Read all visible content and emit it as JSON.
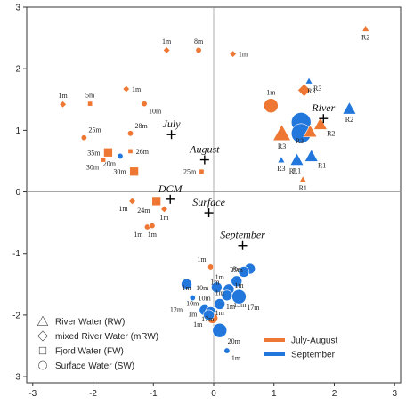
{
  "colors": {
    "july_august": "#EE7733",
    "september": "#2277DD",
    "axis": "#333333",
    "refline": "#999999"
  },
  "chart_data": {
    "type": "scatter",
    "title": "",
    "xlabel": "",
    "ylabel": "",
    "xlim": [
      -3.1,
      3.1
    ],
    "ylim": [
      -3.1,
      3.0
    ],
    "xticks": [
      "-3",
      "-2",
      "-1",
      "0",
      "1",
      "2",
      "3"
    ],
    "yticks": [
      "-3",
      "-2",
      "-1",
      "0",
      "1",
      "2",
      "3"
    ],
    "grid": false,
    "reference_lines": {
      "x": 0,
      "y": 0
    },
    "legend_shapes": [
      {
        "shape": "triangle",
        "label": "River Water (RW)"
      },
      {
        "shape": "diamond",
        "label": "mixed River Water (mRW)"
      },
      {
        "shape": "square",
        "label": "Fjord Water (FW)"
      },
      {
        "shape": "circle",
        "label": "Surface Water (SW)"
      }
    ],
    "legend_colors": [
      {
        "color": "july_august",
        "label": "July-August"
      },
      {
        "color": "september",
        "label": "September"
      }
    ],
    "legend_placement": "bottom-left and bottom-right",
    "variables": [
      {
        "label": "July",
        "x": -0.7,
        "y": 0.93
      },
      {
        "label": "August",
        "x": -0.15,
        "y": 0.52
      },
      {
        "label": "DCM",
        "x": -0.72,
        "y": -0.12
      },
      {
        "label": "Surface",
        "x": -0.08,
        "y": -0.34
      },
      {
        "label": "September",
        "x": 0.48,
        "y": -0.87
      },
      {
        "label": "River",
        "x": 1.82,
        "y": 1.19
      }
    ],
    "points": [
      {
        "shape": "triangle",
        "color": "july_august",
        "x": 2.52,
        "y": 2.65,
        "size": 1,
        "label": "R2",
        "lpos": "below"
      },
      {
        "shape": "diamond",
        "color": "july_august",
        "x": -0.78,
        "y": 2.3,
        "size": 1,
        "label": "1m",
        "lpos": "above"
      },
      {
        "shape": "circle",
        "color": "july_august",
        "x": -0.25,
        "y": 2.3,
        "size": 1,
        "label": "8m",
        "lpos": "above"
      },
      {
        "shape": "diamond",
        "color": "july_august",
        "x": 0.32,
        "y": 2.24,
        "size": 1,
        "label": "1m",
        "lpos": "right"
      },
      {
        "shape": "diamond",
        "color": "july_august",
        "x": -1.45,
        "y": 1.67,
        "size": 1,
        "label": "1m",
        "lpos": "right"
      },
      {
        "shape": "diamond",
        "color": "july_august",
        "x": -2.5,
        "y": 1.42,
        "size": 1,
        "label": "1m",
        "lpos": "above"
      },
      {
        "shape": "square",
        "color": "july_august",
        "x": -2.05,
        "y": 1.43,
        "size": 1,
        "label": "5m",
        "lpos": "above"
      },
      {
        "shape": "circle",
        "color": "july_august",
        "x": -1.15,
        "y": 1.43,
        "size": 1,
        "label": "10m",
        "lpos": "belowright"
      },
      {
        "shape": "circle",
        "color": "july_august",
        "x": -1.38,
        "y": 0.95,
        "size": 1,
        "label": "28m",
        "lpos": "aboveright"
      },
      {
        "shape": "circle",
        "color": "july_august",
        "x": -2.15,
        "y": 0.88,
        "size": 1,
        "label": "25m",
        "lpos": "aboveright"
      },
      {
        "shape": "square",
        "color": "july_august",
        "x": -1.75,
        "y": 0.64,
        "size": 2,
        "label": "35m",
        "lpos": "left"
      },
      {
        "shape": "square",
        "color": "july_august",
        "x": -1.38,
        "y": 0.66,
        "size": 1,
        "label": "26m",
        "lpos": "right"
      },
      {
        "shape": "circle",
        "color": "september",
        "x": -1.55,
        "y": 0.58,
        "size": 1,
        "label": "20m",
        "lpos": "belowleft"
      },
      {
        "shape": "square",
        "color": "july_august",
        "x": -1.83,
        "y": 0.52,
        "size": 1,
        "label": "30m",
        "lpos": "belowleft"
      },
      {
        "shape": "square",
        "color": "july_august",
        "x": -1.32,
        "y": 0.33,
        "size": 2,
        "label": "30m",
        "lpos": "left"
      },
      {
        "shape": "square",
        "color": "july_august",
        "x": -0.2,
        "y": 0.33,
        "size": 1,
        "label": "25m",
        "lpos": "left"
      },
      {
        "shape": "circle",
        "color": "july_august",
        "x": 0.95,
        "y": 1.4,
        "size": 3,
        "label": "1m",
        "lpos": "above"
      },
      {
        "shape": "square",
        "color": "july_august",
        "x": -0.95,
        "y": -0.15,
        "size": 2,
        "label": "24m",
        "lpos": "belowleft"
      },
      {
        "shape": "diamond",
        "color": "july_august",
        "x": -1.35,
        "y": -0.15,
        "size": 1,
        "label": "1m",
        "lpos": "belowleft"
      },
      {
        "shape": "diamond",
        "color": "july_august",
        "x": -0.82,
        "y": -0.28,
        "size": 1,
        "label": "1m",
        "lpos": "below"
      },
      {
        "shape": "circle",
        "color": "july_august",
        "x": -1.1,
        "y": -0.57,
        "size": 1,
        "label": "1m",
        "lpos": "belowleft"
      },
      {
        "shape": "circle",
        "color": "july_august",
        "x": -1.02,
        "y": -0.55,
        "size": 1,
        "label": "1m",
        "lpos": "below"
      },
      {
        "shape": "triangle",
        "color": "september",
        "x": 1.58,
        "y": 1.8,
        "size": 1,
        "label": "R3",
        "lpos": "belowright"
      },
      {
        "shape": "diamond",
        "color": "july_august",
        "x": 1.5,
        "y": 1.65,
        "size": 2,
        "label": "",
        "lpos": "none"
      },
      {
        "shape": "triangle",
        "color": "september",
        "x": 2.25,
        "y": 1.35,
        "size": 2,
        "label": "R2",
        "lpos": "below"
      },
      {
        "shape": "circle",
        "color": "september",
        "x": 1.45,
        "y": 1.13,
        "size": 4,
        "label": "",
        "lpos": "none"
      },
      {
        "shape": "circle",
        "color": "september",
        "x": 1.45,
        "y": 0.95,
        "size": 4,
        "label": "",
        "lpos": "none"
      },
      {
        "shape": "triangle",
        "color": "july_august",
        "x": 1.77,
        "y": 1.1,
        "size": 2,
        "label": "R2",
        "lpos": "belowright"
      },
      {
        "shape": "triangle",
        "color": "july_august",
        "x": 1.13,
        "y": 0.95,
        "size": 3,
        "label": "R3",
        "lpos": "below"
      },
      {
        "shape": "triangle",
        "color": "july_august",
        "x": 1.6,
        "y": 0.98,
        "size": 2,
        "label": "R3",
        "lpos": "belowleft"
      },
      {
        "shape": "triangle",
        "color": "september",
        "x": 1.12,
        "y": 0.52,
        "size": 1,
        "label": "R3",
        "lpos": "below"
      },
      {
        "shape": "triangle",
        "color": "september",
        "x": 1.38,
        "y": 0.52,
        "size": 2,
        "label": "R1",
        "lpos": "below"
      },
      {
        "shape": "triangle",
        "color": "september",
        "x": 1.62,
        "y": 0.58,
        "size": 2,
        "label": "R1",
        "lpos": "belowright"
      },
      {
        "shape": "triangle",
        "color": "july_august",
        "x": 1.48,
        "y": 0.2,
        "size": 1,
        "label": "R1",
        "lpos": "below"
      },
      {
        "shape": "circle",
        "color": "july_august",
        "x": -0.05,
        "y": -1.22,
        "size": 1,
        "label": "1m",
        "lpos": "aboveleft"
      },
      {
        "shape": "circle",
        "color": "september",
        "x": 0.6,
        "y": -1.25,
        "size": 2,
        "label": "18m",
        "lpos": "left"
      },
      {
        "shape": "circle",
        "color": "september",
        "x": 0.5,
        "y": -1.3,
        "size": 2,
        "label": "",
        "lpos": "none"
      },
      {
        "shape": "circle",
        "color": "september",
        "x": 0.38,
        "y": -1.45,
        "size": 2,
        "label": "25m",
        "lpos": "above"
      },
      {
        "shape": "circle",
        "color": "september",
        "x": -0.45,
        "y": -1.5,
        "size": 2,
        "label": "",
        "lpos": "none"
      },
      {
        "shape": "circle",
        "color": "september",
        "x": 0.05,
        "y": -1.55,
        "size": 2,
        "label": "10m",
        "lpos": "left"
      },
      {
        "shape": "circle",
        "color": "september",
        "x": 0.25,
        "y": -1.58,
        "size": 2,
        "label": "",
        "lpos": "none"
      },
      {
        "shape": "circle",
        "color": "september",
        "x": 0.22,
        "y": -1.68,
        "size": 2,
        "label": "15m",
        "lpos": "belowright"
      },
      {
        "shape": "circle",
        "color": "september",
        "x": -0.35,
        "y": -1.72,
        "size": 1,
        "label": "10m",
        "lpos": "right"
      },
      {
        "shape": "circle",
        "color": "september",
        "x": 0.42,
        "y": -1.7,
        "size": 3,
        "label": "17m",
        "lpos": "belowright"
      },
      {
        "shape": "circle",
        "color": "september",
        "x": 0.1,
        "y": -1.82,
        "size": 2,
        "label": "1m",
        "lpos": "above"
      },
      {
        "shape": "circle",
        "color": "september",
        "x": -0.15,
        "y": -1.92,
        "size": 2,
        "label": "",
        "lpos": "none"
      },
      {
        "shape": "circle",
        "color": "september",
        "x": -0.05,
        "y": -1.95,
        "size": 2,
        "label": "",
        "lpos": "none"
      },
      {
        "shape": "circle",
        "color": "july_august",
        "x": -0.02,
        "y": -2.05,
        "size": 2,
        "label": "",
        "lpos": "none"
      },
      {
        "shape": "circle",
        "color": "september",
        "x": -0.08,
        "y": -2.0,
        "size": 2,
        "label": "1m",
        "lpos": "belowleft"
      },
      {
        "shape": "circle",
        "color": "september",
        "x": 0.1,
        "y": -2.25,
        "size": 3,
        "label": "20m",
        "lpos": "belowright"
      },
      {
        "shape": "circle",
        "color": "september",
        "x": 0.22,
        "y": -2.58,
        "size": 1,
        "label": "1m",
        "lpos": "belowright"
      }
    ],
    "extra_labels": [
      {
        "text": "R3",
        "x": 1.62,
        "y": 1.6
      },
      {
        "text": "R1",
        "x": 1.32,
        "y": 0.3
      },
      {
        "text": "12m",
        "x": -0.62,
        "y": -1.95
      },
      {
        "text": "1m",
        "x": -0.45,
        "y": -1.6
      },
      {
        "text": "1m",
        "x": -0.35,
        "y": -2.02
      },
      {
        "text": "1m",
        "x": 0.1,
        "y": -2.0
      },
      {
        "text": "1m",
        "x": 0.42,
        "y": -1.55
      },
      {
        "text": "1m",
        "x": 0.02,
        "y": -1.5
      },
      {
        "text": "1m",
        "x": 0.28,
        "y": -1.9
      },
      {
        "text": "1m",
        "x": 0.1,
        "y": -1.42
      },
      {
        "text": "10m",
        "x": -0.35,
        "y": -1.85
      },
      {
        "text": "17m",
        "x": -0.1,
        "y": -2.1
      }
    ]
  }
}
